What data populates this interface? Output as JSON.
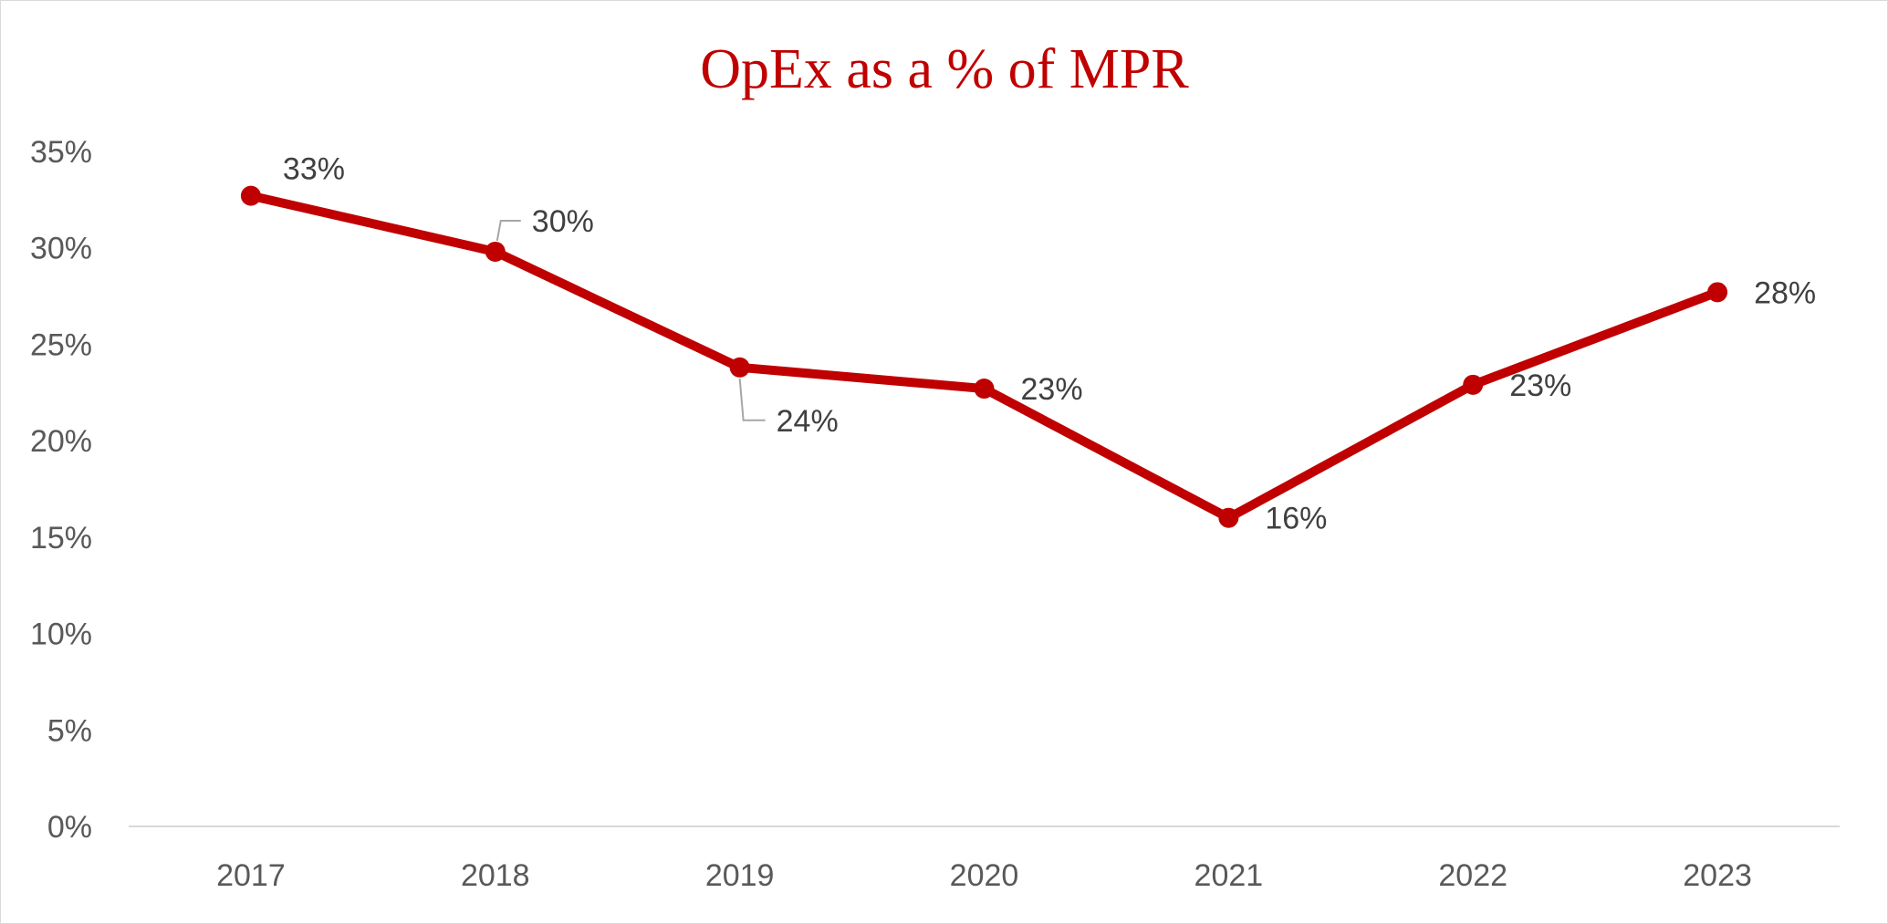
{
  "chart_data": {
    "type": "line",
    "title": "OpEx as a % of MPR",
    "xlabel": "",
    "ylabel": "",
    "categories": [
      "2017",
      "2018",
      "2019",
      "2020",
      "2021",
      "2022",
      "2023"
    ],
    "values": [
      32.7,
      29.8,
      23.8,
      22.7,
      16.0,
      22.9,
      27.7
    ],
    "data_labels": [
      "33%",
      "30%",
      "24%",
      "23%",
      "16%",
      "23%",
      "28%"
    ],
    "ylim": [
      0,
      35
    ],
    "yticks": [
      0,
      5,
      10,
      15,
      20,
      25,
      30,
      35
    ],
    "ytick_labels": [
      "0%",
      "5%",
      "10%",
      "15%",
      "20%",
      "25%",
      "30%",
      "35%"
    ],
    "grid": false,
    "legend": "none",
    "colors": {
      "series": "#c00000",
      "title": "#c00000",
      "axis": "#d9d9d9",
      "leader": "#a6a6a6"
    }
  }
}
